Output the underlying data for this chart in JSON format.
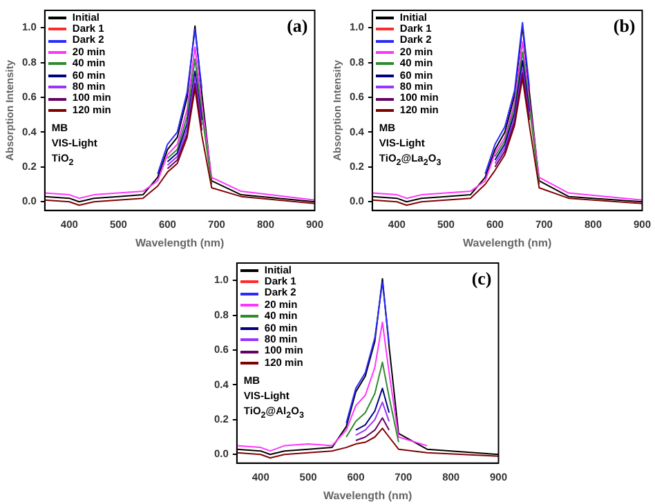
{
  "chart_data": [
    {
      "type": "line",
      "xlabel": "Wavelength (nm)",
      "ylabel": "Absorption Intensity",
      "annotations": [
        "(a)",
        "MB",
        "VIS-Light",
        "TiO$_{2}$"
      ],
      "x": [
        350,
        400,
        420,
        450,
        500,
        550,
        580,
        600,
        620,
        640,
        656,
        670,
        690,
        750,
        900
      ],
      "xlim": [
        350,
        900
      ],
      "xticks": [
        400,
        500,
        600,
        700,
        800,
        900
      ],
      "ylim": [
        -0.05,
        1.1
      ],
      "yticks": [
        {
          "value": 0,
          "label": "0.0"
        },
        {
          "value": 0.2,
          "label": "0.2"
        },
        {
          "value": 0.4,
          "label": "0.4"
        },
        {
          "value": 0.6,
          "label": "0.6"
        },
        {
          "value": 0.8,
          "label": "0.8"
        },
        {
          "value": 1,
          "label": "1.0"
        }
      ],
      "legend": "top left",
      "grid": false,
      "marker": "none",
      "line_style": "solid",
      "series": [
        {
          "name": "Initial",
          "color": "#000000",
          "values": [
            0.03,
            0.02,
            0,
            0.02,
            0.03,
            0.04,
            0.14,
            0.3,
            0.37,
            0.6,
            1.01,
            0.62,
            0.12,
            0.04,
            0
          ]
        },
        {
          "name": "Dark 1",
          "color": "#ff2a2a",
          "values": [
            null,
            null,
            null,
            null,
            null,
            null,
            null,
            null,
            null,
            null,
            null,
            null,
            null,
            null,
            null
          ]
        },
        {
          "name": "Dark 2",
          "color": "#2a2aff",
          "values": [
            null,
            null,
            null,
            null,
            null,
            null,
            0.16,
            0.33,
            0.4,
            0.63,
            0.99,
            0.65,
            null,
            null,
            null
          ]
        },
        {
          "name": "20 min",
          "color": "#ff33ff",
          "values": [
            0.05,
            0.04,
            0.02,
            0.04,
            0.05,
            0.06,
            0.12,
            0.27,
            0.33,
            0.53,
            0.89,
            0.56,
            0.14,
            0.06,
            0.01
          ]
        },
        {
          "name": "40 min",
          "color": "#2e8b2e",
          "values": [
            null,
            null,
            null,
            null,
            null,
            null,
            null,
            0.25,
            0.3,
            0.49,
            0.82,
            0.51,
            0.1,
            null,
            null
          ]
        },
        {
          "name": "60 min",
          "color": "#000080",
          "values": [
            null,
            null,
            null,
            null,
            null,
            null,
            null,
            0.23,
            0.28,
            0.45,
            0.75,
            0.47,
            null,
            null,
            null
          ]
        },
        {
          "name": "80 min",
          "color": "#9933ff",
          "values": [
            null,
            null,
            null,
            null,
            null,
            null,
            null,
            0.21,
            0.26,
            0.42,
            0.72,
            0.44,
            null,
            null,
            null
          ]
        },
        {
          "name": "100 min",
          "color": "#660066",
          "values": [
            null,
            null,
            null,
            null,
            null,
            null,
            null,
            0.19,
            0.24,
            0.39,
            0.68,
            0.41,
            null,
            null,
            null
          ]
        },
        {
          "name": "120 min",
          "color": "#800000",
          "values": [
            0.01,
            0,
            -0.02,
            0,
            0.01,
            0.02,
            0.09,
            0.17,
            0.22,
            0.37,
            0.65,
            0.38,
            0.08,
            0.03,
            -0.01
          ]
        }
      ]
    },
    {
      "type": "line",
      "xlabel": "Wavelength (nm)",
      "ylabel": "Absorption Intensity",
      "annotations": [
        "(b)",
        "MB",
        "VIS-Light",
        "TiO$_{2}$@La$_{2}$O$_{3}$"
      ],
      "x": [
        350,
        400,
        420,
        450,
        500,
        550,
        580,
        600,
        620,
        640,
        656,
        670,
        690,
        750,
        900
      ],
      "xlim": [
        350,
        900
      ],
      "xticks": [
        400,
        500,
        600,
        700,
        800,
        900
      ],
      "ylim": [
        -0.05,
        1.1
      ],
      "yticks": [
        {
          "value": 0,
          "label": "0.0"
        },
        {
          "value": 0.2,
          "label": "0.2"
        },
        {
          "value": 0.4,
          "label": "0.4"
        },
        {
          "value": 0.6,
          "label": "0.6"
        },
        {
          "value": 0.8,
          "label": "0.8"
        },
        {
          "value": 1,
          "label": "1.0"
        }
      ],
      "legend": "top left",
      "grid": false,
      "marker": "none",
      "line_style": "solid",
      "series": [
        {
          "name": "Initial",
          "color": "#000000",
          "values": [
            0.03,
            0.02,
            0,
            0.02,
            0.03,
            0.04,
            0.14,
            0.3,
            0.4,
            0.61,
            1.01,
            0.63,
            0.12,
            0.03,
            0
          ]
        },
        {
          "name": "Dark 1",
          "color": "#ff2a2a",
          "values": [
            null,
            null,
            null,
            null,
            null,
            null,
            null,
            null,
            null,
            null,
            null,
            null,
            null,
            null,
            null
          ]
        },
        {
          "name": "Dark 2",
          "color": "#2a2aff",
          "values": [
            null,
            null,
            null,
            null,
            null,
            null,
            0.16,
            0.33,
            0.43,
            0.64,
            1.03,
            0.66,
            null,
            null,
            null
          ]
        },
        {
          "name": "20 min",
          "color": "#ff33ff",
          "values": [
            0.05,
            0.04,
            0.02,
            0.04,
            0.05,
            0.06,
            0.12,
            0.28,
            0.37,
            0.57,
            0.92,
            0.58,
            0.14,
            0.05,
            0.01
          ]
        },
        {
          "name": "40 min",
          "color": "#2e8b2e",
          "values": [
            null,
            null,
            null,
            null,
            null,
            null,
            null,
            0.26,
            0.35,
            0.54,
            0.86,
            0.55,
            0.1,
            null,
            null
          ]
        },
        {
          "name": "60 min",
          "color": "#000080",
          "values": [
            null,
            null,
            null,
            null,
            null,
            null,
            null,
            0.24,
            0.33,
            0.51,
            0.81,
            0.52,
            null,
            null,
            null
          ]
        },
        {
          "name": "80 min",
          "color": "#9933ff",
          "values": [
            null,
            null,
            null,
            null,
            null,
            null,
            null,
            0.22,
            0.31,
            0.48,
            0.77,
            0.49,
            null,
            null,
            null
          ]
        },
        {
          "name": "100 min",
          "color": "#660066",
          "values": [
            null,
            null,
            null,
            null,
            null,
            null,
            null,
            0.2,
            0.29,
            0.46,
            0.74,
            0.47,
            null,
            null,
            null
          ]
        },
        {
          "name": "120 min",
          "color": "#800000",
          "values": [
            0.01,
            0,
            -0.02,
            0,
            0.01,
            0.02,
            0.1,
            0.18,
            0.27,
            0.44,
            0.71,
            0.44,
            0.08,
            0.02,
            -0.01
          ]
        }
      ]
    },
    {
      "type": "line",
      "xlabel": "Wavelength (nm)",
      "annotations": [
        "(c)",
        "MB",
        "VIS-Light",
        "TiO$_{2}$@Al$_{2}$O$_{3}$"
      ],
      "x": [
        350,
        400,
        420,
        450,
        500,
        550,
        580,
        600,
        620,
        640,
        656,
        670,
        690,
        750,
        900
      ],
      "xlim": [
        350,
        900
      ],
      "xticks": [
        400,
        500,
        600,
        700,
        800,
        900
      ],
      "ylim": [
        -0.05,
        1.1
      ],
      "yticks": [
        {
          "value": 0,
          "label": "0.0"
        },
        {
          "value": 0.2,
          "label": "0.2"
        },
        {
          "value": 0.4,
          "label": "0.4"
        },
        {
          "value": 0.6,
          "label": "0.6"
        },
        {
          "value": 0.8,
          "label": "0.8"
        },
        {
          "value": 1,
          "label": "1.0"
        }
      ],
      "legend": "top left",
      "grid": false,
      "marker": "none",
      "line_style": "solid",
      "series": [
        {
          "name": "Initial",
          "color": "#000000",
          "values": [
            0.03,
            0.02,
            0,
            0.02,
            0.03,
            0.04,
            0.16,
            0.36,
            0.45,
            0.65,
            1.01,
            0.62,
            0.12,
            0.03,
            0
          ]
        },
        {
          "name": "Dark 1",
          "color": "#ff2a2a",
          "values": [
            null,
            null,
            null,
            null,
            null,
            null,
            null,
            null,
            null,
            null,
            null,
            null,
            null,
            null,
            null
          ]
        },
        {
          "name": "Dark 2",
          "color": "#2a2aff",
          "values": [
            null,
            null,
            null,
            null,
            null,
            null,
            0.18,
            0.38,
            0.47,
            0.67,
            0.99,
            0.64,
            null,
            null,
            null
          ]
        },
        {
          "name": "20 min",
          "color": "#ff33ff",
          "values": [
            0.05,
            0.04,
            0.02,
            0.05,
            0.06,
            0.05,
            0.14,
            0.28,
            0.34,
            0.5,
            0.76,
            0.47,
            0.1,
            0.05,
            null
          ]
        },
        {
          "name": "40 min",
          "color": "#2e8b2e",
          "values": [
            null,
            null,
            null,
            null,
            null,
            null,
            0.1,
            0.19,
            0.24,
            0.35,
            0.53,
            0.33,
            0.07,
            null,
            null
          ]
        },
        {
          "name": "60 min",
          "color": "#000080",
          "values": [
            null,
            null,
            null,
            null,
            null,
            null,
            null,
            0.14,
            0.17,
            0.25,
            0.38,
            0.24,
            null,
            null,
            null
          ]
        },
        {
          "name": "80 min",
          "color": "#9933ff",
          "values": [
            null,
            null,
            null,
            null,
            null,
            null,
            null,
            0.11,
            0.14,
            0.2,
            0.3,
            0.19,
            null,
            null,
            null
          ]
        },
        {
          "name": "100 min",
          "color": "#660066",
          "values": [
            null,
            null,
            null,
            null,
            null,
            null,
            null,
            0.08,
            0.1,
            0.14,
            0.21,
            0.14,
            null,
            null,
            null
          ]
        },
        {
          "name": "120 min",
          "color": "#800000",
          "values": [
            0.01,
            0,
            -0.02,
            0,
            0.01,
            0.02,
            0.04,
            0.06,
            0.07,
            0.1,
            0.15,
            0.1,
            0.03,
            0.01,
            -0.01
          ]
        }
      ]
    }
  ]
}
